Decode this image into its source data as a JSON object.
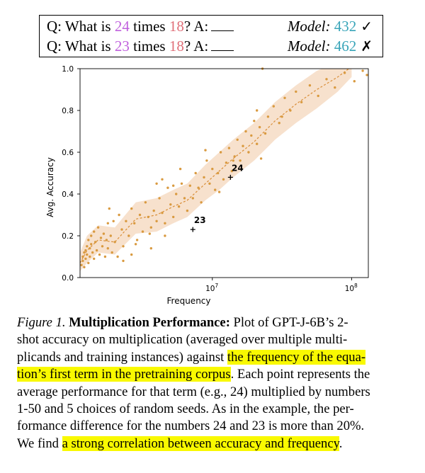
{
  "question_box": {
    "rows": [
      {
        "q_prefix": "Q: What is ",
        "num1": "24",
        "q_mid": " times ",
        "num2": "18",
        "q_suffix": "? A:",
        "model_label": "Model:",
        "answer": "432",
        "mark": "✓"
      },
      {
        "q_prefix": "Q: What is ",
        "num1": "23",
        "q_mid": " times ",
        "num2": "18",
        "q_suffix": "? A:",
        "model_label": "Model:",
        "answer": "462",
        "mark": "✗"
      }
    ]
  },
  "colors": {
    "point": "#d99a40",
    "band": "#f6dcc4",
    "line": "#d98e38",
    "num_purple": "#c061dd",
    "num_pink": "#e0707a",
    "answer_teal": "#39a5b9",
    "highlight": "#f9f900"
  },
  "chart_data": {
    "type": "scatter",
    "title": "",
    "xlabel": "Frequency",
    "ylabel": "Avg. Accuracy",
    "xscale": "log",
    "xlim_log10": [
      6.05,
      8.12
    ],
    "ylim": [
      0.0,
      1.0
    ],
    "x_ticks": [
      {
        "log10": 7,
        "base": "10",
        "exp": "7"
      },
      {
        "log10": 8,
        "base": "10",
        "exp": "8"
      }
    ],
    "y_ticks": [
      {
        "value": 0.0,
        "label": "0.0"
      },
      {
        "value": 0.2,
        "label": "0.2"
      },
      {
        "value": 0.4,
        "label": "0.4"
      },
      {
        "value": 0.6,
        "label": "0.6"
      },
      {
        "value": 0.8,
        "label": "0.8"
      },
      {
        "value": 1.0,
        "label": "1.0"
      }
    ],
    "points": [
      [
        6.06,
        0.06
      ],
      [
        6.07,
        0.08
      ],
      [
        6.07,
        0.1
      ],
      [
        6.08,
        0.12
      ],
      [
        6.08,
        0.05
      ],
      [
        6.09,
        0.13
      ],
      [
        6.09,
        0.09
      ],
      [
        6.1,
        0.15
      ],
      [
        6.1,
        0.11
      ],
      [
        6.11,
        0.07
      ],
      [
        6.11,
        0.18
      ],
      [
        6.12,
        0.14
      ],
      [
        6.12,
        0.1
      ],
      [
        6.13,
        0.2
      ],
      [
        6.13,
        0.16
      ],
      [
        6.14,
        0.12
      ],
      [
        6.15,
        0.22
      ],
      [
        6.15,
        0.09
      ],
      [
        6.16,
        0.17
      ],
      [
        6.17,
        0.13
      ],
      [
        6.18,
        0.24
      ],
      [
        6.19,
        0.11
      ],
      [
        6.2,
        0.19
      ],
      [
        6.21,
        0.15
      ],
      [
        6.22,
        0.21
      ],
      [
        6.23,
        0.1
      ],
      [
        6.24,
        0.18
      ],
      [
        6.25,
        0.14
      ],
      [
        6.26,
        0.33
      ],
      [
        6.27,
        0.2
      ],
      [
        6.28,
        0.12
      ],
      [
        6.29,
        0.27
      ],
      [
        6.3,
        0.17
      ],
      [
        6.32,
        0.1
      ],
      [
        6.33,
        0.3
      ],
      [
        6.35,
        0.23
      ],
      [
        6.36,
        0.15
      ],
      [
        6.38,
        0.27
      ],
      [
        6.4,
        0.2
      ],
      [
        6.42,
        0.33
      ],
      [
        6.44,
        0.26
      ],
      [
        6.46,
        0.18
      ],
      [
        6.48,
        0.3
      ],
      [
        6.5,
        0.22
      ],
      [
        6.52,
        0.36
      ],
      [
        6.54,
        0.29
      ],
      [
        6.56,
        0.24
      ],
      [
        6.58,
        0.32
      ],
      [
        6.6,
        0.27
      ],
      [
        6.62,
        0.38
      ],
      [
        6.64,
        0.31
      ],
      [
        6.66,
        0.26
      ],
      [
        6.68,
        0.43
      ],
      [
        6.7,
        0.35
      ],
      [
        6.72,
        0.29
      ],
      [
        6.74,
        0.4
      ],
      [
        6.76,
        0.34
      ],
      [
        6.78,
        0.45
      ],
      [
        6.8,
        0.38
      ],
      [
        6.82,
        0.32
      ],
      [
        6.84,
        0.44
      ],
      [
        6.86,
        0.38
      ],
      [
        6.88,
        0.5
      ],
      [
        6.9,
        0.43
      ],
      [
        6.92,
        0.36
      ],
      [
        6.94,
        0.48
      ],
      [
        6.96,
        0.56
      ],
      [
        6.98,
        0.45
      ],
      [
        7.0,
        0.52
      ],
      [
        7.02,
        0.42
      ],
      [
        7.04,
        0.5
      ],
      [
        7.06,
        0.6
      ],
      [
        7.08,
        0.47
      ],
      [
        7.1,
        0.55
      ],
      [
        7.12,
        0.62
      ],
      [
        7.14,
        0.51
      ],
      [
        7.16,
        0.58
      ],
      [
        7.18,
        0.66
      ],
      [
        7.2,
        0.56
      ],
      [
        7.22,
        0.63
      ],
      [
        7.24,
        0.7
      ],
      [
        7.26,
        0.6
      ],
      [
        7.28,
        0.68
      ],
      [
        7.3,
        0.75
      ],
      [
        7.32,
        0.64
      ],
      [
        7.34,
        0.72
      ],
      [
        7.36,
        1.0
      ],
      [
        7.38,
        0.69
      ],
      [
        7.4,
        0.77
      ],
      [
        7.44,
        0.82
      ],
      [
        7.48,
        0.74
      ],
      [
        7.52,
        0.86
      ],
      [
        7.56,
        0.8
      ],
      [
        7.6,
        0.89
      ],
      [
        7.64,
        0.84
      ],
      [
        7.7,
        0.92
      ],
      [
        7.76,
        0.87
      ],
      [
        7.82,
        0.95
      ],
      [
        7.88,
        0.91
      ],
      [
        7.95,
        0.98
      ],
      [
        8.02,
        0.94
      ],
      [
        8.08,
        0.99
      ],
      [
        8.11,
        0.97
      ],
      [
        6.45,
        0.16
      ],
      [
        6.56,
        0.14
      ],
      [
        6.6,
        0.45
      ],
      [
        6.64,
        0.47
      ],
      [
        6.66,
        0.2
      ],
      [
        6.72,
        0.44
      ],
      [
        6.77,
        0.52
      ],
      [
        6.95,
        0.61
      ],
      [
        7.05,
        0.41
      ],
      [
        7.15,
        0.56
      ],
      [
        7.35,
        0.57
      ],
      [
        7.32,
        0.8
      ],
      [
        7.5,
        0.77
      ],
      [
        6.25,
        0.26
      ],
      [
        6.36,
        0.08
      ],
      [
        6.42,
        0.11
      ],
      [
        6.55,
        0.21
      ]
    ],
    "trend": [
      [
        6.05,
        0.07
      ],
      [
        6.1,
        0.13
      ],
      [
        6.18,
        0.18
      ],
      [
        6.3,
        0.17
      ],
      [
        6.45,
        0.28
      ],
      [
        6.6,
        0.3
      ],
      [
        6.72,
        0.34
      ],
      [
        6.82,
        0.37
      ],
      [
        6.95,
        0.45
      ],
      [
        7.05,
        0.51
      ],
      [
        7.15,
        0.57
      ],
      [
        7.3,
        0.65
      ],
      [
        7.45,
        0.75
      ],
      [
        7.6,
        0.83
      ],
      [
        7.75,
        0.9
      ],
      [
        7.9,
        0.96
      ],
      [
        8.0,
        1.01
      ]
    ],
    "band_upper": [
      [
        6.05,
        0.12
      ],
      [
        6.1,
        0.2
      ],
      [
        6.18,
        0.25
      ],
      [
        6.3,
        0.24
      ],
      [
        6.45,
        0.36
      ],
      [
        6.6,
        0.38
      ],
      [
        6.72,
        0.42
      ],
      [
        6.82,
        0.45
      ],
      [
        6.95,
        0.54
      ],
      [
        7.05,
        0.6
      ],
      [
        7.15,
        0.66
      ],
      [
        7.3,
        0.74
      ],
      [
        7.45,
        0.84
      ],
      [
        7.6,
        0.92
      ],
      [
        7.75,
        0.99
      ],
      [
        7.9,
        1.03
      ],
      [
        8.0,
        1.05
      ]
    ],
    "band_lower": [
      [
        6.05,
        0.03
      ],
      [
        6.1,
        0.07
      ],
      [
        6.18,
        0.12
      ],
      [
        6.3,
        0.11
      ],
      [
        6.45,
        0.21
      ],
      [
        6.6,
        0.22
      ],
      [
        6.72,
        0.26
      ],
      [
        6.82,
        0.29
      ],
      [
        6.95,
        0.37
      ],
      [
        7.05,
        0.42
      ],
      [
        7.15,
        0.48
      ],
      [
        7.3,
        0.56
      ],
      [
        7.45,
        0.66
      ],
      [
        7.6,
        0.74
      ],
      [
        7.75,
        0.81
      ],
      [
        7.9,
        0.89
      ],
      [
        8.0,
        0.96
      ]
    ],
    "annotations": [
      {
        "label": "24",
        "log10_x": 7.13,
        "y": 0.48
      },
      {
        "label": "23",
        "log10_x": 6.86,
        "y": 0.23
      }
    ]
  },
  "caption": {
    "lines": [
      [
        {
          "t": "Figure 1.",
          "s": "fig-label"
        },
        {
          "t": " "
        },
        {
          "t": "Multiplication Performance:",
          "s": "fig-title"
        },
        {
          "t": " Plot of GPT-J-6B’s 2-"
        }
      ],
      [
        {
          "t": "shot accuracy on multiplication (averaged over multiple multi-"
        }
      ],
      [
        {
          "t": "plicands and training instances) against "
        },
        {
          "t": "the frequency of the equa-",
          "s": "hl"
        }
      ],
      [
        {
          "t": "tion’s first term in the pretraining corpus",
          "s": "hl"
        },
        {
          "t": ". Each point represents the"
        }
      ],
      [
        {
          "t": "average performance for that term (e.g., 24) multiplied by numbers"
        }
      ],
      [
        {
          "t": "1-50 and 5 choices of random seeds. As in the example, the per-"
        }
      ],
      [
        {
          "t": "formance difference for the numbers 24 and 23 is more than 20%."
        }
      ],
      [
        {
          "t": "We find "
        },
        {
          "t": "a strong correlation between accuracy and frequency",
          "s": "hl"
        },
        {
          "t": "."
        }
      ]
    ]
  }
}
